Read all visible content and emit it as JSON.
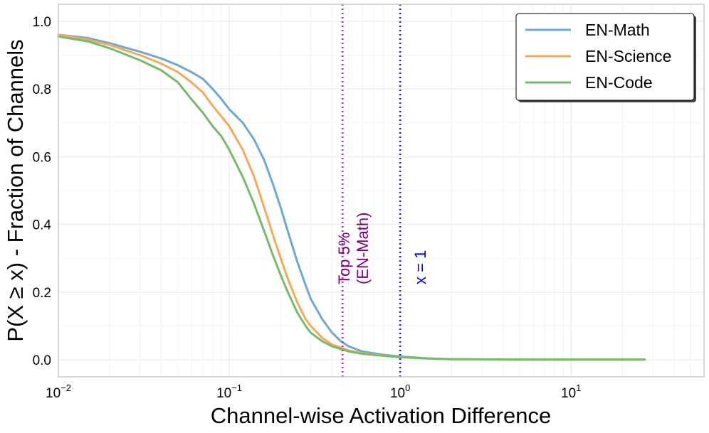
{
  "chart_data": {
    "type": "line",
    "xlabel": "Channel-wise Activation Difference",
    "ylabel": "P(X ≥ x) - Fraction of Channels",
    "x_scale": "log",
    "xlim": [
      0.01,
      60
    ],
    "ylim": [
      -0.05,
      1.05
    ],
    "grid": true,
    "legend_position": "top-right",
    "x_ticks": [
      {
        "value": 0.01,
        "base": "10",
        "exp": "−2"
      },
      {
        "value": 0.1,
        "base": "10",
        "exp": "−1"
      },
      {
        "value": 1,
        "base": "10",
        "exp": "0"
      },
      {
        "value": 10,
        "base": "10",
        "exp": "1"
      }
    ],
    "y_ticks": [
      {
        "value": 0.0,
        "label": "0.0"
      },
      {
        "value": 0.2,
        "label": "0.2"
      },
      {
        "value": 0.4,
        "label": "0.4"
      },
      {
        "value": 0.6,
        "label": "0.6"
      },
      {
        "value": 0.8,
        "label": "0.8"
      },
      {
        "value": 1.0,
        "label": "1.0"
      }
    ],
    "series": [
      {
        "name": "EN-Math",
        "color": "#6fa8d6",
        "points": [
          [
            0.01,
            0.96
          ],
          [
            0.015,
            0.95
          ],
          [
            0.02,
            0.935
          ],
          [
            0.03,
            0.91
          ],
          [
            0.04,
            0.89
          ],
          [
            0.05,
            0.87
          ],
          [
            0.06,
            0.85
          ],
          [
            0.07,
            0.83
          ],
          [
            0.08,
            0.8
          ],
          [
            0.09,
            0.77
          ],
          [
            0.1,
            0.74
          ],
          [
            0.12,
            0.7
          ],
          [
            0.14,
            0.65
          ],
          [
            0.16,
            0.59
          ],
          [
            0.18,
            0.52
          ],
          [
            0.2,
            0.45
          ],
          [
            0.22,
            0.38
          ],
          [
            0.25,
            0.29
          ],
          [
            0.28,
            0.22
          ],
          [
            0.3,
            0.18
          ],
          [
            0.35,
            0.12
          ],
          [
            0.4,
            0.08
          ],
          [
            0.45,
            0.055
          ],
          [
            0.5,
            0.04
          ],
          [
            0.6,
            0.025
          ],
          [
            0.8,
            0.015
          ],
          [
            1.0,
            0.01
          ],
          [
            1.5,
            0.004
          ],
          [
            2,
            0.002
          ],
          [
            5,
            0.001
          ],
          [
            10,
            0.001
          ],
          [
            27,
            0.001
          ]
        ]
      },
      {
        "name": "EN-Science",
        "color": "#f7a95b",
        "points": [
          [
            0.01,
            0.96
          ],
          [
            0.015,
            0.945
          ],
          [
            0.02,
            0.93
          ],
          [
            0.03,
            0.9
          ],
          [
            0.04,
            0.875
          ],
          [
            0.05,
            0.85
          ],
          [
            0.06,
            0.82
          ],
          [
            0.07,
            0.79
          ],
          [
            0.08,
            0.75
          ],
          [
            0.1,
            0.69
          ],
          [
            0.12,
            0.62
          ],
          [
            0.14,
            0.54
          ],
          [
            0.16,
            0.45
          ],
          [
            0.18,
            0.37
          ],
          [
            0.2,
            0.3
          ],
          [
            0.22,
            0.24
          ],
          [
            0.25,
            0.17
          ],
          [
            0.28,
            0.12
          ],
          [
            0.3,
            0.1
          ],
          [
            0.35,
            0.065
          ],
          [
            0.4,
            0.045
          ],
          [
            0.5,
            0.028
          ],
          [
            0.6,
            0.02
          ],
          [
            0.8,
            0.013
          ],
          [
            1.0,
            0.008
          ],
          [
            1.5,
            0.004
          ],
          [
            2,
            0.002
          ],
          [
            5,
            0.001
          ],
          [
            10,
            0.001
          ],
          [
            27,
            0.001
          ]
        ]
      },
      {
        "name": "EN-Code",
        "color": "#74bb6a",
        "points": [
          [
            0.01,
            0.955
          ],
          [
            0.015,
            0.94
          ],
          [
            0.02,
            0.92
          ],
          [
            0.03,
            0.885
          ],
          [
            0.04,
            0.855
          ],
          [
            0.05,
            0.82
          ],
          [
            0.06,
            0.77
          ],
          [
            0.07,
            0.73
          ],
          [
            0.08,
            0.69
          ],
          [
            0.09,
            0.66
          ],
          [
            0.1,
            0.62
          ],
          [
            0.12,
            0.54
          ],
          [
            0.14,
            0.46
          ],
          [
            0.16,
            0.38
          ],
          [
            0.18,
            0.31
          ],
          [
            0.2,
            0.25
          ],
          [
            0.22,
            0.2
          ],
          [
            0.25,
            0.14
          ],
          [
            0.28,
            0.1
          ],
          [
            0.3,
            0.08
          ],
          [
            0.35,
            0.055
          ],
          [
            0.4,
            0.04
          ],
          [
            0.5,
            0.025
          ],
          [
            0.6,
            0.018
          ],
          [
            0.8,
            0.012
          ],
          [
            1.0,
            0.008
          ],
          [
            1.5,
            0.004
          ],
          [
            2,
            0.002
          ],
          [
            5,
            0.001
          ],
          [
            10,
            0.001
          ],
          [
            27,
            0.001
          ]
        ]
      }
    ],
    "reference_lines": [
      {
        "x": 0.46,
        "color": "#9b4fa0",
        "label_lines": [
          "Top 5%",
          "(EN-Math)"
        ],
        "label_color": "#800080"
      },
      {
        "x": 1.0,
        "color": "#3333ee",
        "label_lines": [
          "x = 1"
        ],
        "label_color": "#0000ee"
      }
    ]
  }
}
